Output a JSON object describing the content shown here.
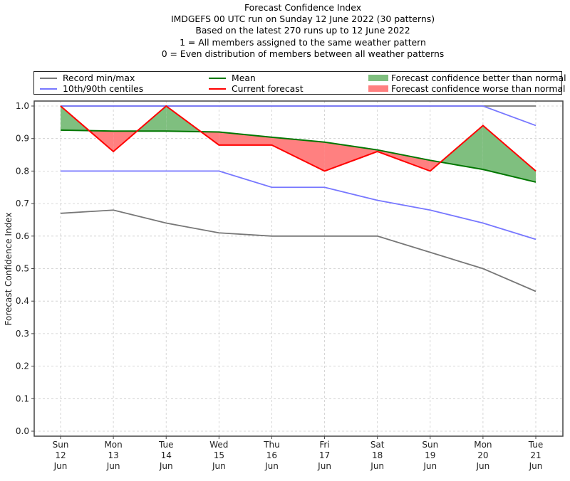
{
  "title_lines": [
    "Forecast Confidence Index",
    "IMDGEFS 00 UTC run on Sunday 12 June 2022 (30 patterns)",
    "Based on the latest 270 runs up to 12 June 2022",
    "1 = All members assigned to the same weather pattern",
    "0 = Even distribution of members between all weather patterns"
  ],
  "legend": {
    "record": "Record min/max",
    "centiles": "10th/90th centiles",
    "mean": "Mean",
    "current": "Current forecast",
    "better": "Forecast confidence better than normal",
    "worse": "Forecast confidence worse than normal"
  },
  "colors": {
    "record": "#777777",
    "centiles": "#7777ff",
    "centile_upper": "#3333cc",
    "mean": "#007700",
    "current": "#ff0000",
    "better": "#7fbf7f",
    "worse": "#ff8080",
    "grid": "#cccccc"
  },
  "chart_data": {
    "type": "line",
    "title": "Forecast Confidence Index",
    "xlabel": "",
    "ylabel": "Forecast Confidence Index",
    "ylim": [
      0.0,
      1.0
    ],
    "yticks": [
      "0.0",
      "0.1",
      "0.2",
      "0.3",
      "0.4",
      "0.5",
      "0.6",
      "0.7",
      "0.8",
      "0.9",
      "1.0"
    ],
    "grid": true,
    "legend_position": "top",
    "categories": [
      [
        "Sun",
        "12",
        "Jun"
      ],
      [
        "Mon",
        "13",
        "Jun"
      ],
      [
        "Tue",
        "14",
        "Jun"
      ],
      [
        "Wed",
        "15",
        "Jun"
      ],
      [
        "Thu",
        "16",
        "Jun"
      ],
      [
        "Fri",
        "17",
        "Jun"
      ],
      [
        "Sat",
        "18",
        "Jun"
      ],
      [
        "Sun",
        "19",
        "Jun"
      ],
      [
        "Mon",
        "20",
        "Jun"
      ],
      [
        "Tue",
        "21",
        "Jun"
      ]
    ],
    "series": [
      {
        "name": "Record max",
        "values": [
          1.0,
          1.0,
          1.0,
          1.0,
          1.0,
          1.0,
          1.0,
          1.0,
          1.0,
          1.0
        ]
      },
      {
        "name": "Record min",
        "values": [
          0.67,
          0.68,
          0.64,
          0.61,
          0.6,
          0.6,
          0.6,
          0.55,
          0.5,
          0.43
        ]
      },
      {
        "name": "90th centile",
        "values": [
          1.0,
          1.0,
          1.0,
          1.0,
          1.0,
          1.0,
          1.0,
          1.0,
          1.0,
          0.94
        ]
      },
      {
        "name": "10th centile",
        "values": [
          0.8,
          0.8,
          0.8,
          0.8,
          0.75,
          0.75,
          0.71,
          0.68,
          0.64,
          0.59
        ]
      },
      {
        "name": "Mean",
        "values": [
          0.926,
          0.923,
          0.923,
          0.92,
          0.904,
          0.889,
          0.865,
          0.833,
          0.805,
          0.766
        ]
      },
      {
        "name": "Current forecast",
        "values": [
          1.0,
          0.86,
          1.0,
          0.88,
          0.88,
          0.8,
          0.86,
          0.8,
          0.94,
          0.8
        ]
      }
    ]
  }
}
